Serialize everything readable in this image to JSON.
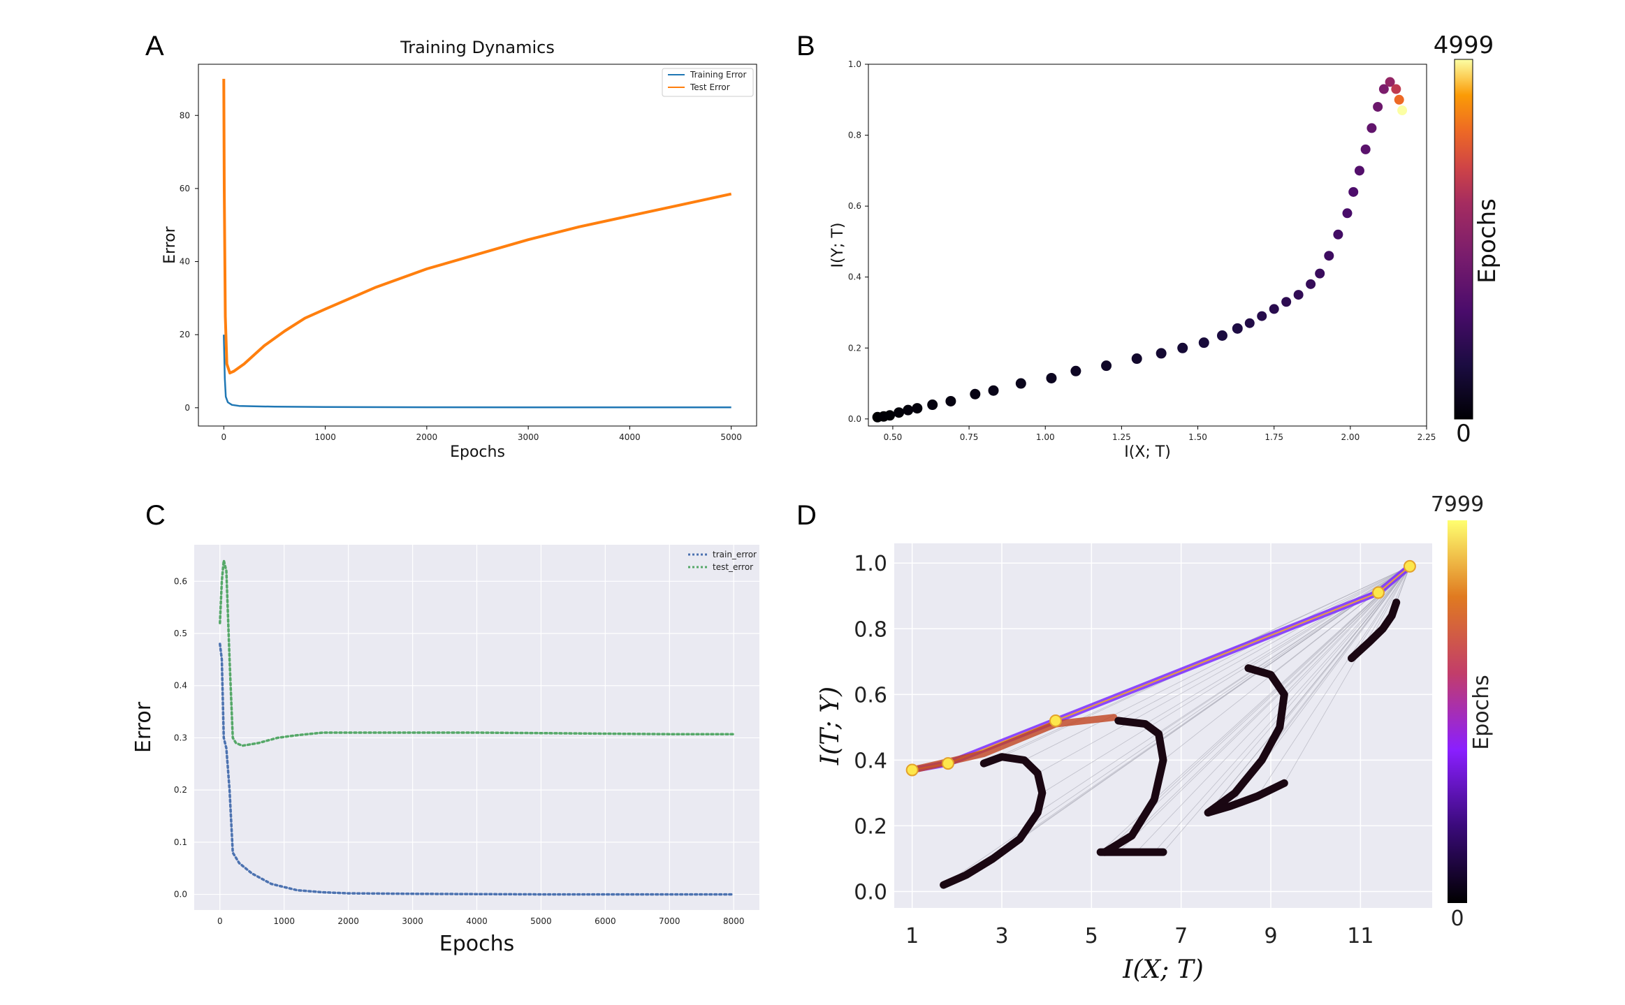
{
  "panels": {
    "a": "A",
    "b": "B",
    "c": "C",
    "d": "D"
  },
  "chart_data": [
    {
      "panel": "A",
      "type": "line",
      "title": "Training Dynamics",
      "xlabel": "Epochs",
      "ylabel": "Error",
      "xlim": [
        -250,
        5250
      ],
      "ylim": [
        -5,
        94
      ],
      "xticks": [
        0,
        1000,
        2000,
        3000,
        4000,
        5000
      ],
      "yticks": [
        0,
        20,
        40,
        60,
        80
      ],
      "legend_position": "top-right",
      "grid": false,
      "colors": {
        "Training Error": "#1f77b4",
        "Test Error": "#ff7f0e"
      },
      "series": [
        {
          "name": "Training Error",
          "x": [
            0,
            10,
            20,
            40,
            80,
            150,
            300,
            500,
            1000,
            2000,
            3000,
            4000,
            5000
          ],
          "y": [
            20,
            8,
            3,
            1.5,
            0.8,
            0.5,
            0.4,
            0.3,
            0.2,
            0.15,
            0.12,
            0.1,
            0.1
          ]
        },
        {
          "name": "Test Error",
          "x": [
            0,
            5,
            15,
            30,
            60,
            100,
            200,
            400,
            600,
            800,
            1000,
            1500,
            2000,
            2500,
            3000,
            3500,
            4000,
            4500,
            5000
          ],
          "y": [
            90,
            60,
            25,
            12,
            9.5,
            10,
            12,
            17,
            21,
            24.5,
            27,
            33,
            38,
            42,
            46,
            49.5,
            52.5,
            55.5,
            58.5
          ]
        }
      ]
    },
    {
      "panel": "B",
      "type": "scatter",
      "xlabel": "I(X; T)",
      "ylabel": "I(Y; T)",
      "xlim": [
        0.42,
        2.25
      ],
      "ylim": [
        -0.02,
        1.0
      ],
      "xticks": [
        0.5,
        0.75,
        1.0,
        1.25,
        1.5,
        1.75,
        2.0,
        2.25
      ],
      "xtick_labels": [
        "0.50",
        "0.75",
        "1.00",
        "1.25",
        "1.50",
        "1.75",
        "2.00",
        "2.25"
      ],
      "yticks": [
        0.0,
        0.2,
        0.4,
        0.6,
        0.8,
        1.0
      ],
      "ytick_labels": [
        "0.0",
        "0.2",
        "0.4",
        "0.6",
        "0.8",
        "1.0"
      ],
      "colorbar": {
        "label": "Epochs",
        "min": 0,
        "max": 4999,
        "min_label": "0",
        "max_label": "4999",
        "colormap": "inferno"
      },
      "points": [
        [
          0.45,
          0.005,
          0
        ],
        [
          0.47,
          0.007,
          20
        ],
        [
          0.49,
          0.01,
          40
        ],
        [
          0.52,
          0.018,
          60
        ],
        [
          0.55,
          0.025,
          80
        ],
        [
          0.58,
          0.03,
          100
        ],
        [
          0.63,
          0.04,
          130
        ],
        [
          0.69,
          0.05,
          160
        ],
        [
          0.77,
          0.07,
          200
        ],
        [
          0.83,
          0.08,
          240
        ],
        [
          0.92,
          0.1,
          290
        ],
        [
          1.02,
          0.115,
          340
        ],
        [
          1.1,
          0.135,
          390
        ],
        [
          1.2,
          0.15,
          440
        ],
        [
          1.3,
          0.17,
          500
        ],
        [
          1.38,
          0.185,
          560
        ],
        [
          1.45,
          0.2,
          620
        ],
        [
          1.52,
          0.215,
          680
        ],
        [
          1.58,
          0.235,
          740
        ],
        [
          1.63,
          0.255,
          800
        ],
        [
          1.67,
          0.27,
          860
        ],
        [
          1.71,
          0.29,
          920
        ],
        [
          1.75,
          0.31,
          980
        ],
        [
          1.79,
          0.33,
          1040
        ],
        [
          1.83,
          0.35,
          1100
        ],
        [
          1.87,
          0.38,
          1160
        ],
        [
          1.9,
          0.41,
          1230
        ],
        [
          1.93,
          0.46,
          1300
        ],
        [
          1.96,
          0.52,
          1380
        ],
        [
          1.99,
          0.58,
          1460
        ],
        [
          2.01,
          0.64,
          1550
        ],
        [
          2.03,
          0.7,
          1650
        ],
        [
          2.05,
          0.76,
          1760
        ],
        [
          2.07,
          0.82,
          1880
        ],
        [
          2.09,
          0.88,
          2050
        ],
        [
          2.11,
          0.93,
          2300
        ],
        [
          2.13,
          0.95,
          2700
        ],
        [
          2.15,
          0.93,
          3300
        ],
        [
          2.16,
          0.9,
          4000
        ],
        [
          2.17,
          0.87,
          4999
        ]
      ]
    },
    {
      "panel": "C",
      "type": "line",
      "xlabel": "Epochs",
      "ylabel": "Error",
      "xlim": [
        -400,
        8400
      ],
      "ylim": [
        -0.03,
        0.67
      ],
      "xticks": [
        0,
        1000,
        2000,
        3000,
        4000,
        5000,
        6000,
        7000,
        8000
      ],
      "yticks": [
        0.0,
        0.1,
        0.2,
        0.3,
        0.4,
        0.5,
        0.6
      ],
      "ytick_labels": [
        "0.0",
        "0.1",
        "0.2",
        "0.3",
        "0.4",
        "0.5",
        "0.6"
      ],
      "legend_position": "top-right",
      "grid": true,
      "colors": {
        "train_error": "#4c72b0",
        "test_error": "#55a868"
      },
      "series": [
        {
          "name": "train_error",
          "x": [
            0,
            30,
            60,
            100,
            150,
            200,
            300,
            500,
            800,
            1200,
            1600,
            2000,
            3000,
            5000,
            8000
          ],
          "y": [
            0.48,
            0.45,
            0.3,
            0.28,
            0.2,
            0.08,
            0.06,
            0.04,
            0.02,
            0.008,
            0.004,
            0.002,
            0.001,
            0.0,
            0.0
          ]
        },
        {
          "name": "test_error",
          "x": [
            0,
            30,
            60,
            100,
            150,
            200,
            250,
            350,
            600,
            900,
            1200,
            1600,
            2000,
            3000,
            4000,
            5000,
            6000,
            7000,
            8000
          ],
          "y": [
            0.52,
            0.6,
            0.64,
            0.62,
            0.45,
            0.3,
            0.29,
            0.285,
            0.29,
            0.3,
            0.305,
            0.31,
            0.31,
            0.31,
            0.31,
            0.309,
            0.308,
            0.307,
            0.307
          ]
        }
      ]
    },
    {
      "panel": "D",
      "type": "line",
      "xlabel": "I(X; T)",
      "ylabel": "I(T; Y)",
      "xlim": [
        0.6,
        12.6
      ],
      "ylim": [
        -0.05,
        1.06
      ],
      "xticks": [
        1,
        3,
        5,
        7,
        9,
        11
      ],
      "yticks": [
        0.0,
        0.2,
        0.4,
        0.6,
        0.8,
        1.0
      ],
      "ytick_labels": [
        "0.0",
        "0.2",
        "0.4",
        "0.6",
        "0.8",
        "1.0"
      ],
      "grid": true,
      "colorbar": {
        "label": "Epochs",
        "min": 0,
        "max": 7999,
        "min_label": "0",
        "max_label": "7999",
        "colormap": "inferno"
      },
      "layers": [
        {
          "x": [
            1.7,
            2.2,
            2.8,
            3.4,
            3.8,
            3.9,
            3.8,
            3.5,
            3.0,
            2.6
          ],
          "y": [
            0.02,
            0.05,
            0.1,
            0.16,
            0.24,
            0.3,
            0.36,
            0.4,
            0.41,
            0.39
          ]
        },
        {
          "x": [
            5.2,
            5.6,
            6.0,
            6.4,
            6.6
          ],
          "y": [
            0.12,
            0.12,
            0.12,
            0.12,
            0.12
          ]
        },
        {
          "x": [
            5.3,
            5.9,
            6.4,
            6.6,
            6.5,
            6.2,
            5.6
          ],
          "y": [
            0.12,
            0.17,
            0.28,
            0.4,
            0.48,
            0.51,
            0.52
          ]
        },
        {
          "x": [
            7.6,
            8.2,
            8.8,
            9.2,
            9.3,
            9.0,
            8.5
          ],
          "y": [
            0.24,
            0.3,
            0.4,
            0.5,
            0.6,
            0.66,
            0.68
          ]
        },
        {
          "x": [
            7.6,
            8.1,
            8.7,
            9.3
          ],
          "y": [
            0.24,
            0.26,
            0.29,
            0.33
          ]
        },
        {
          "x": [
            10.8,
            11.2,
            11.5,
            11.7,
            11.8
          ],
          "y": [
            0.71,
            0.76,
            0.8,
            0.84,
            0.88
          ]
        }
      ],
      "final_points": [
        [
          1.0,
          0.37
        ],
        [
          1.8,
          0.39
        ],
        [
          4.2,
          0.52
        ],
        [
          11.4,
          0.91
        ],
        [
          12.1,
          0.99
        ]
      ]
    }
  ]
}
